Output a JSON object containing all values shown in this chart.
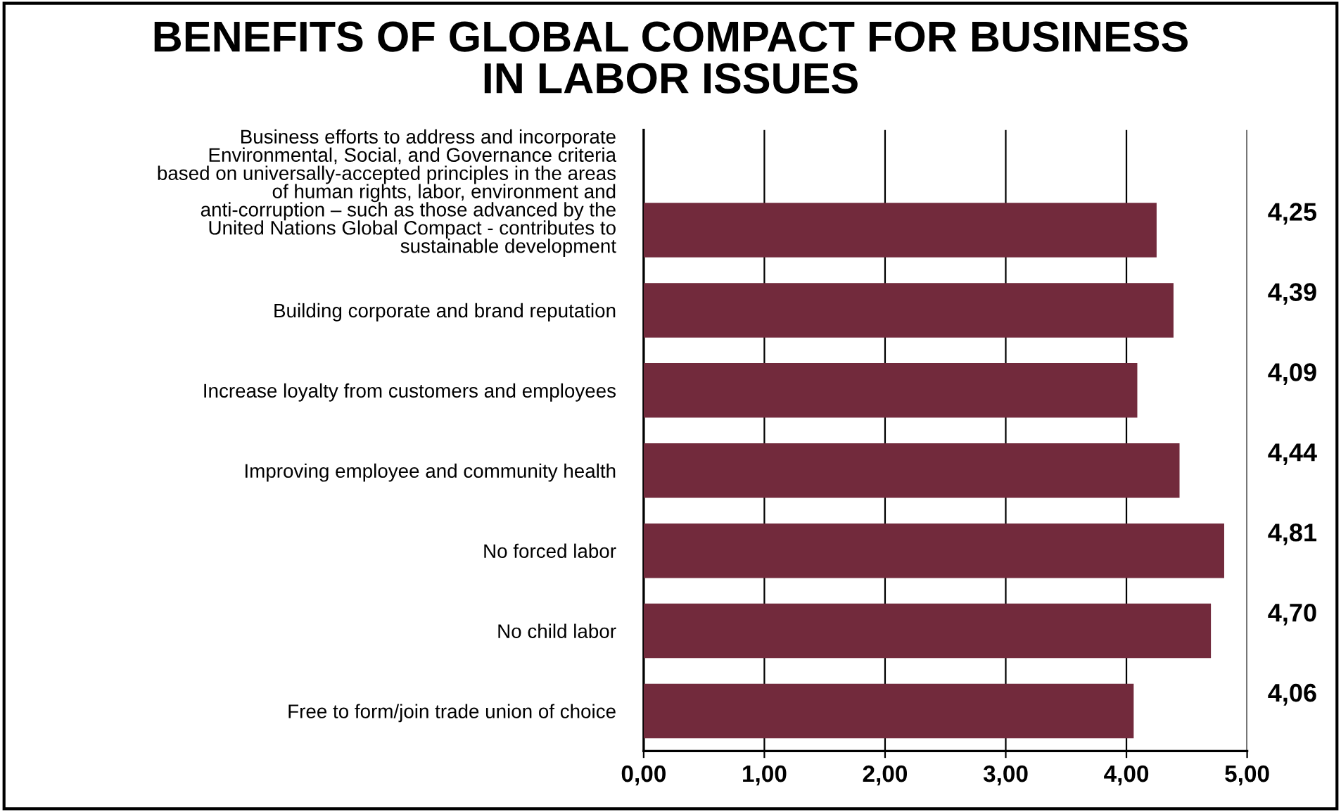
{
  "chart_data": {
    "type": "bar",
    "orientation": "horizontal",
    "title": "BENEFITS OF GLOBAL COMPACT FOR BUSINESS\nIN LABOR ISSUES",
    "categories": [
      "Business efforts to address and incorporate\nEnvironmental, Social, and Governance criteria\nbased on universally-accepted principles in the areas\nof human rights, labor, environment and\nanti-corruption – such as those advanced by the\nUnited Nations Global Compact - contributes to\nsustainable development",
      "Building corporate and brand reputation",
      "Increase loyalty from customers and employees",
      "Improving employee and community health",
      "No forced labor",
      "No child labor",
      "Free to form/join trade union of choice"
    ],
    "values": [
      4.25,
      4.39,
      4.09,
      4.44,
      4.81,
      4.7,
      4.06
    ],
    "value_labels": [
      "4,25",
      "4,39",
      "4,09",
      "4,44",
      "4,81",
      "4,70",
      "4,06"
    ],
    "color": "#722a3c",
    "xlim": [
      0,
      5
    ],
    "xticks": [
      {
        "value": 0,
        "label": "0,00"
      },
      {
        "value": 1,
        "label": "1,00"
      },
      {
        "value": 2,
        "label": "2,00"
      },
      {
        "value": 3,
        "label": "3,00"
      },
      {
        "value": 4,
        "label": "4,00"
      },
      {
        "value": 5,
        "label": "5,00"
      }
    ],
    "grid": "x"
  }
}
